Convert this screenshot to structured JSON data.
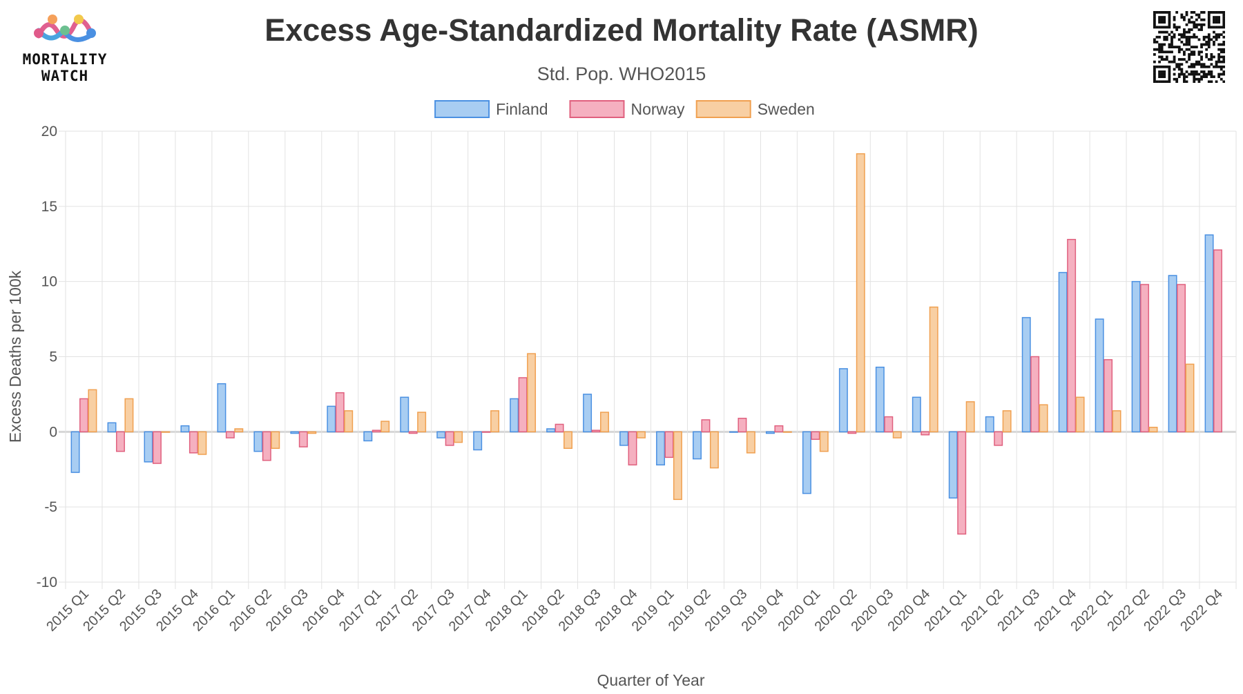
{
  "header": {
    "title": "Excess Age-Standardized Mortality Rate (ASMR)",
    "subtitle": "Std. Pop. WHO2015",
    "logo_text_line1": "MORTALITY",
    "logo_text_line2": "WATCH"
  },
  "chart_data": {
    "type": "bar",
    "xlabel": "Quarter of Year",
    "ylabel": "Excess Deaths per 100k",
    "ylim": [
      -10,
      20
    ],
    "yticks": [
      -10,
      -5,
      0,
      5,
      10,
      15,
      20
    ],
    "grid": true,
    "legend_position": "top-center",
    "categories": [
      "2015 Q1",
      "2015 Q2",
      "2015 Q3",
      "2015 Q4",
      "2016 Q1",
      "2016 Q2",
      "2016 Q3",
      "2016 Q4",
      "2017 Q1",
      "2017 Q2",
      "2017 Q3",
      "2017 Q4",
      "2018 Q1",
      "2018 Q2",
      "2018 Q3",
      "2018 Q4",
      "2019 Q1",
      "2019 Q2",
      "2019 Q3",
      "2019 Q4",
      "2020 Q1",
      "2020 Q2",
      "2020 Q3",
      "2020 Q4",
      "2021 Q1",
      "2021 Q2",
      "2021 Q3",
      "2021 Q4",
      "2022 Q1",
      "2022 Q2",
      "2022 Q3",
      "2022 Q4"
    ],
    "series": [
      {
        "name": "Finland",
        "fill": "#a8cdf2",
        "stroke": "#4a90e2",
        "values": [
          -2.7,
          0.6,
          -2.0,
          0.4,
          3.2,
          -1.3,
          -0.1,
          1.7,
          -0.6,
          2.3,
          -0.4,
          -1.2,
          2.2,
          0.2,
          2.5,
          -0.9,
          -2.2,
          -1.8,
          0.0,
          -0.1,
          -4.1,
          4.2,
          4.3,
          2.3,
          -4.4,
          1.0,
          7.6,
          10.6,
          7.5,
          10.0,
          10.4,
          13.1
        ]
      },
      {
        "name": "Norway",
        "fill": "#f5b0c0",
        "stroke": "#e0607e",
        "values": [
          2.2,
          -1.3,
          -2.1,
          -1.4,
          -0.4,
          -1.9,
          -1.0,
          2.6,
          0.1,
          -0.1,
          -0.9,
          0.0,
          3.6,
          0.5,
          0.1,
          -2.2,
          -1.7,
          0.8,
          0.9,
          0.4,
          -0.5,
          -0.1,
          1.0,
          -0.2,
          -6.8,
          -0.9,
          5.0,
          12.8,
          4.8,
          9.8,
          9.8,
          12.1
        ]
      },
      {
        "name": "Sweden",
        "fill": "#f8cfa3",
        "stroke": "#f0a050",
        "values": [
          2.8,
          2.2,
          0.0,
          -1.5,
          0.2,
          -1.1,
          -0.1,
          1.4,
          0.7,
          1.3,
          -0.7,
          1.4,
          5.2,
          -1.1,
          1.3,
          -0.4,
          -4.5,
          -2.4,
          -1.4,
          0.0,
          -1.3,
          18.5,
          -0.4,
          8.3,
          2.0,
          1.4,
          1.8,
          2.3,
          1.4,
          0.3,
          4.5,
          null
        ]
      }
    ]
  }
}
